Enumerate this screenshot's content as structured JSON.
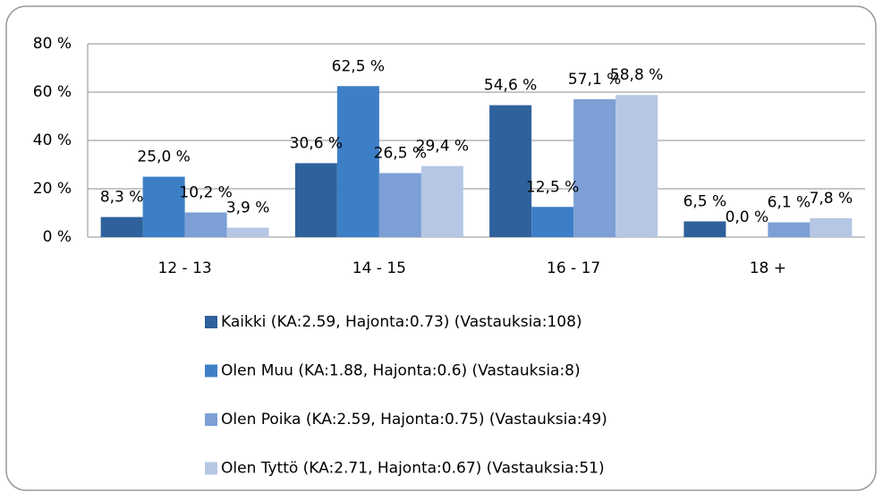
{
  "chart_data": {
    "type": "bar",
    "categories": [
      "12 - 13",
      "14 - 15",
      "16 - 17",
      "18 +"
    ],
    "series": [
      {
        "name": "Kaikki (KA:2.59, Hajonta:0.73) (Vastauksia:108)",
        "color": "#2f619c",
        "values": [
          8.3,
          30.6,
          54.6,
          6.5
        ],
        "value_labels": [
          "8,3 %",
          "30,6 %",
          "54,6 %",
          "6,5 %"
        ]
      },
      {
        "name": "Olen Muu (KA:1.88, Hajonta:0.6) (Vastauksia:8)",
        "color": "#3d7fc6",
        "values": [
          25.0,
          62.5,
          12.5,
          0.0
        ],
        "value_labels": [
          "25,0 %",
          "62,5 %",
          "12,5 %",
          "0,0 %"
        ]
      },
      {
        "name": "Olen Poika (KA:2.59, Hajonta:0.75) (Vastauksia:49)",
        "color": "#7c9fd5",
        "values": [
          10.2,
          26.5,
          57.1,
          6.1
        ],
        "value_labels": [
          "10,2 %",
          "26,5 %",
          "57,1 %",
          "6,1 %"
        ]
      },
      {
        "name": "Olen Tyttö (KA:2.71, Hajonta:0.67) (Vastauksia:51)",
        "color": "#b5c7e5",
        "values": [
          3.9,
          29.4,
          58.8,
          7.8
        ],
        "value_labels": [
          "3,9 %",
          "29,4 %",
          "58,8 %",
          "7,8 %"
        ]
      }
    ],
    "ylim": [
      0,
      80
    ],
    "yticks": [
      {
        "value": 0,
        "label": "0 %"
      },
      {
        "value": 20,
        "label": "20 %"
      },
      {
        "value": 40,
        "label": "40 %"
      },
      {
        "value": 60,
        "label": "60 %"
      },
      {
        "value": 80,
        "label": "80 %"
      }
    ],
    "grid": true,
    "legend": "bottom"
  }
}
